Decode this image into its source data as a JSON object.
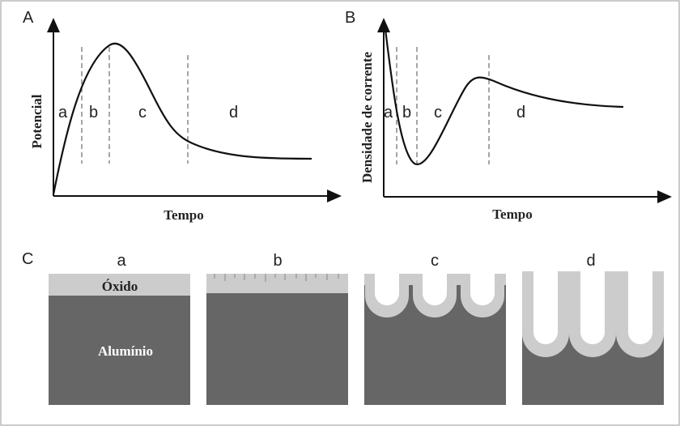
{
  "panel_a": {
    "label": "A",
    "y_axis_label": "Potencial",
    "x_axis_label": "Tempo",
    "stages": [
      "a",
      "b",
      "c",
      "d"
    ]
  },
  "panel_b": {
    "label": "B",
    "y_axis_label": "Densidade de corrente",
    "x_axis_label": "Tempo",
    "stages": [
      "a",
      "b",
      "c",
      "d"
    ]
  },
  "panel_c": {
    "label": "C",
    "stages": [
      "a",
      "b",
      "c",
      "d"
    ],
    "oxide_label": "Óxido",
    "metal_label": "Alumínio"
  }
}
